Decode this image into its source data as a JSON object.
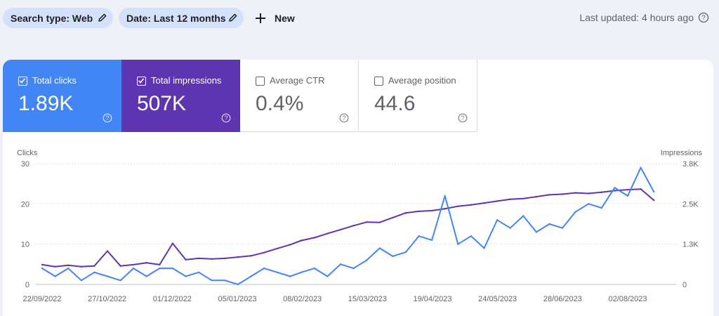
{
  "filters": {
    "search_type": "Search type: Web",
    "date": "Date: Last 12 months",
    "new_label": "New"
  },
  "last_updated": "Last updated: 4 hours ago",
  "metrics": [
    {
      "label": "Total clicks",
      "value": "1.89K",
      "checked": true,
      "color": "#4285f4"
    },
    {
      "label": "Total impressions",
      "value": "507K",
      "checked": true,
      "color": "#5e35b1"
    },
    {
      "label": "Average CTR",
      "value": "0.4%",
      "checked": false
    },
    {
      "label": "Average position",
      "value": "44.6",
      "checked": false
    }
  ],
  "chart_data": {
    "type": "line",
    "left_axis": {
      "label": "Clicks",
      "ticks": [
        "30",
        "20",
        "10",
        "0"
      ],
      "range": [
        0,
        30
      ]
    },
    "right_axis": {
      "label": "Impressions",
      "ticks": [
        "3.8K",
        "2.5K",
        "1.3K",
        "0"
      ],
      "range": [
        0,
        3800
      ]
    },
    "x_ticks": [
      "22/09/2022",
      "27/10/2022",
      "01/12/2022",
      "05/01/2023",
      "08/02/2023",
      "15/03/2023",
      "19/04/2023",
      "24/05/2023",
      "28/06/2023",
      "02/08/2023"
    ],
    "grid": true,
    "series": [
      {
        "axis": "left",
        "color": "#4285f4",
        "x": [
          "22/09/2022",
          "29/09/2022",
          "06/10/2022",
          "13/10/2022",
          "20/10/2022",
          "27/10/2022",
          "03/11/2022",
          "10/11/2022",
          "17/11/2022",
          "24/11/2022",
          "01/12/2022",
          "08/12/2022",
          "15/12/2022",
          "22/12/2022",
          "29/12/2022",
          "05/01/2023",
          "12/01/2023",
          "19/01/2023",
          "26/01/2023",
          "02/02/2023",
          "08/02/2023",
          "15/02/2023",
          "22/02/2023",
          "01/03/2023",
          "08/03/2023",
          "15/03/2023",
          "22/03/2023",
          "29/03/2023",
          "05/04/2023",
          "12/04/2023",
          "19/04/2023",
          "26/04/2023",
          "03/05/2023",
          "10/05/2023",
          "17/05/2023",
          "24/05/2023",
          "31/05/2023",
          "07/06/2023",
          "14/06/2023",
          "21/06/2023",
          "28/06/2023",
          "05/07/2023",
          "12/07/2023",
          "19/07/2023",
          "26/07/2023",
          "02/08/2023",
          "09/08/2023",
          "16/08/2023"
        ],
        "values": [
          4,
          2,
          4,
          1,
          3,
          2,
          1,
          4,
          2,
          4,
          4,
          2,
          3,
          1,
          1,
          0,
          2,
          4,
          3,
          2,
          3,
          4,
          2,
          5,
          4,
          6,
          9,
          7,
          8,
          12,
          11,
          22,
          10,
          12,
          9,
          16,
          14,
          17,
          13,
          15,
          14,
          18,
          20,
          19,
          24,
          22,
          29,
          23
        ]
      },
      {
        "axis": "right",
        "color": "#5e35b1",
        "x": [
          "22/09/2022",
          "29/09/2022",
          "06/10/2022",
          "13/10/2022",
          "20/10/2022",
          "27/10/2022",
          "03/11/2022",
          "10/11/2022",
          "17/11/2022",
          "24/11/2022",
          "01/12/2022",
          "08/12/2022",
          "15/12/2022",
          "22/12/2022",
          "29/12/2022",
          "05/01/2023",
          "12/01/2023",
          "19/01/2023",
          "26/01/2023",
          "02/02/2023",
          "08/02/2023",
          "15/02/2023",
          "22/02/2023",
          "01/03/2023",
          "08/03/2023",
          "15/03/2023",
          "22/03/2023",
          "29/03/2023",
          "05/04/2023",
          "12/04/2023",
          "19/04/2023",
          "26/04/2023",
          "03/05/2023",
          "10/05/2023",
          "17/05/2023",
          "24/05/2023",
          "31/05/2023",
          "07/06/2023",
          "14/06/2023",
          "21/06/2023",
          "28/06/2023",
          "05/07/2023",
          "12/07/2023",
          "19/07/2023",
          "26/07/2023",
          "02/08/2023",
          "09/08/2023",
          "16/08/2023"
        ],
        "values": [
          620,
          560,
          600,
          560,
          580,
          1050,
          580,
          620,
          680,
          620,
          1290,
          780,
          820,
          800,
          820,
          860,
          900,
          1000,
          1130,
          1250,
          1380,
          1470,
          1600,
          1720,
          1850,
          1960,
          1950,
          2100,
          2250,
          2300,
          2320,
          2380,
          2460,
          2500,
          2560,
          2620,
          2680,
          2700,
          2760,
          2820,
          2840,
          2880,
          2860,
          2900,
          2950,
          2980,
          3000,
          2650
        ]
      }
    ]
  }
}
